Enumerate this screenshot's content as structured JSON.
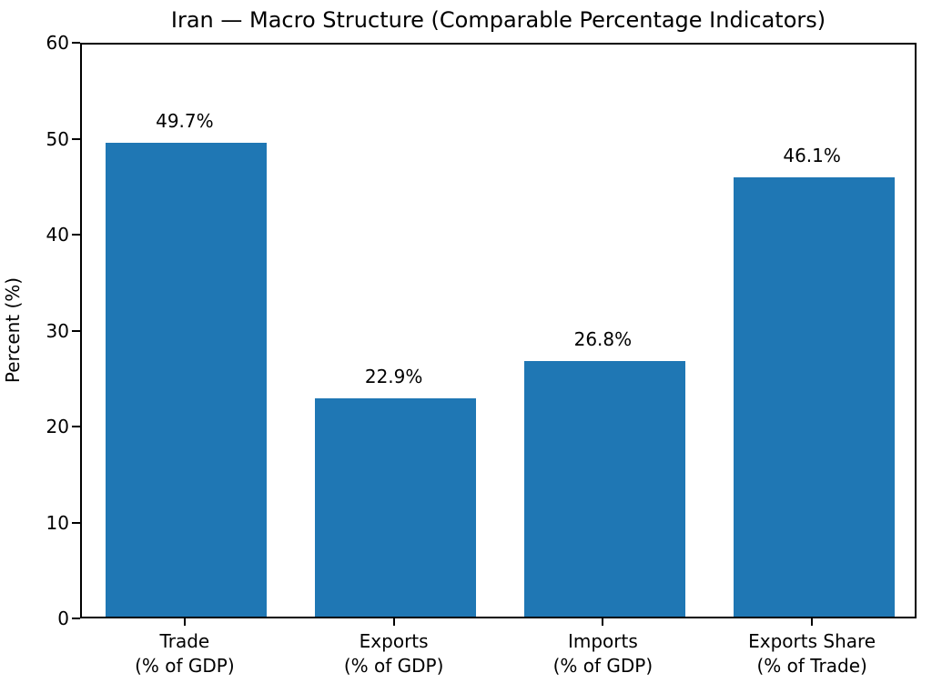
{
  "chart_data": {
    "type": "bar",
    "title": "Iran — Macro Structure (Comparable Percentage Indicators)",
    "ylabel": "Percent (%)",
    "xlabel": "",
    "ylim": [
      0,
      60
    ],
    "y_ticks": [
      0,
      10,
      20,
      30,
      40,
      50,
      60
    ],
    "grid": false,
    "legend": "none",
    "bar_color": "#1f77b4",
    "categories": [
      {
        "line1": "Trade",
        "line2": "(% of GDP)"
      },
      {
        "line1": "Exports",
        "line2": "(% of GDP)"
      },
      {
        "line1": "Imports",
        "line2": "(% of GDP)"
      },
      {
        "line1": "Exports Share",
        "line2": "(% of Trade)"
      }
    ],
    "values": [
      49.7,
      22.9,
      26.8,
      46.1
    ],
    "value_labels": [
      "49.7%",
      "22.9%",
      "26.8%",
      "46.1%"
    ]
  }
}
